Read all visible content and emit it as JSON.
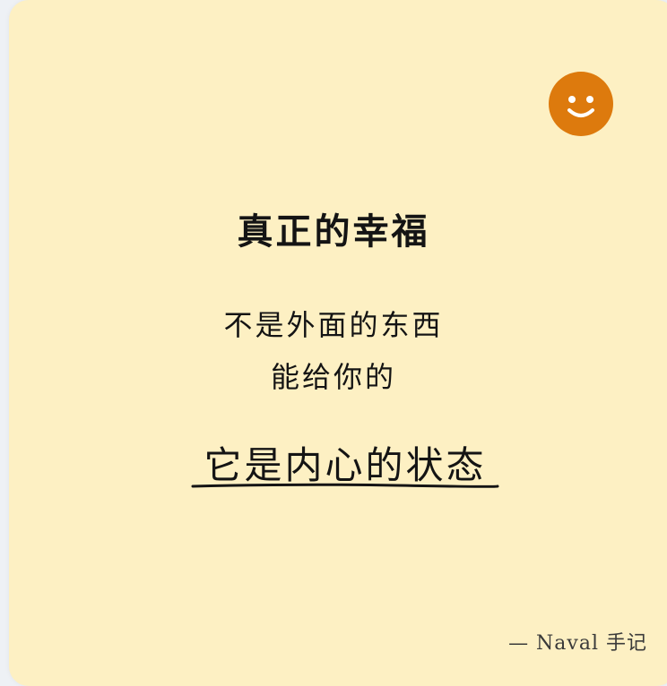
{
  "card": {
    "background": "#fdf0c3",
    "accent": "#dd7a0d"
  },
  "icon": "smiley-face-icon",
  "title": "真正的幸福",
  "body": {
    "line1": "不是外面的东西",
    "line2": "能给你的"
  },
  "emphasis": "它是内心的状态",
  "signature": "— Naval 手记"
}
